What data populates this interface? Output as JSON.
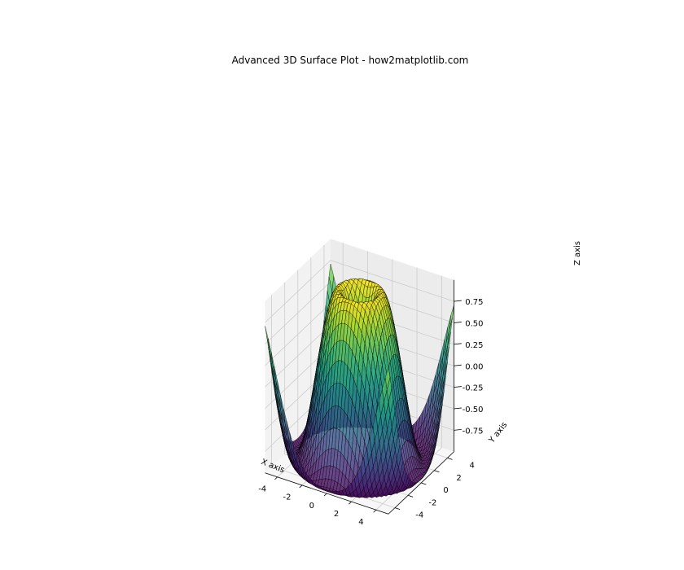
{
  "chart_data": {
    "type": "surface3d",
    "title": "Advanced 3D Surface Plot - how2matplotlib.com",
    "function": "z = sin(sqrt(x^2 + y^2))",
    "xlabel": "X axis",
    "ylabel": "Y axis",
    "zlabel": "Z axis",
    "xlim": [
      -5,
      5
    ],
    "ylim": [
      -5,
      5
    ],
    "zlim": [
      -1,
      1
    ],
    "x_ticks": [
      "-4",
      "-2",
      "0",
      "2",
      "4"
    ],
    "y_ticks": [
      "-4",
      "-2",
      "0",
      "2",
      "4"
    ],
    "z_ticks": [
      "-0.75",
      "-0.50",
      "-0.25",
      "0.00",
      "0.25",
      "0.50",
      "0.75"
    ],
    "grid": true,
    "colormap": "viridis",
    "edgecolor": "black",
    "grid_resolution": 40,
    "colors": {
      "pane_back": "#ececec",
      "pane_side": "#f2f2f2",
      "pane_floor": "#f7f7f7",
      "grid_line": "#cccccc"
    }
  }
}
